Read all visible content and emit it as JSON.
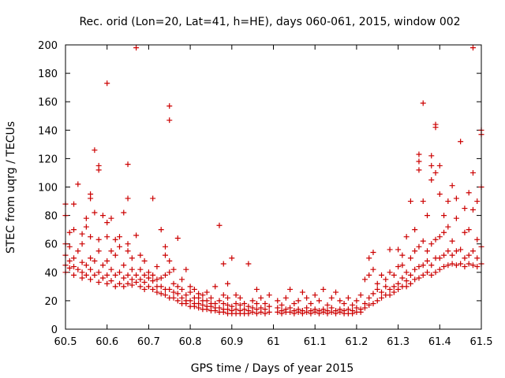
{
  "chart_data": {
    "type": "scatter",
    "title": "Rec. orid (Lon=20, Lat=41, h=HE), days 060-061, 2015, window 002",
    "xlabel": "GPS time / Days of year 2015",
    "ylabel": "STEC from uqrg / TECUs",
    "xlim": [
      60.5,
      61.5
    ],
    "ylim": [
      0,
      200
    ],
    "xticks": [
      60.5,
      60.6,
      60.7,
      60.8,
      60.9,
      61,
      61.1,
      61.2,
      61.3,
      61.4,
      61.5
    ],
    "xtick_labels": [
      "60.5",
      "60.6",
      "60.7",
      "60.8",
      "60.9",
      "61",
      "61.1",
      "61.2",
      "61.3",
      "61.4",
      "61.5"
    ],
    "yticks": [
      0,
      20,
      40,
      60,
      80,
      100,
      120,
      140,
      160,
      180,
      200
    ],
    "ytick_labels": [
      "0",
      "20",
      "40",
      "60",
      "80",
      "100",
      "120",
      "140",
      "160",
      "180",
      "200"
    ],
    "marker": "+",
    "color": "#cc0000",
    "points": [
      [
        60.5,
        40
      ],
      [
        60.5,
        45
      ],
      [
        60.5,
        52
      ],
      [
        60.5,
        60
      ],
      [
        60.5,
        80
      ],
      [
        60.5,
        88
      ],
      [
        60.51,
        43
      ],
      [
        60.51,
        48
      ],
      [
        60.51,
        58
      ],
      [
        60.51,
        68
      ],
      [
        60.52,
        38
      ],
      [
        60.52,
        44
      ],
      [
        60.52,
        50
      ],
      [
        60.52,
        70
      ],
      [
        60.52,
        88
      ],
      [
        60.53,
        42
      ],
      [
        60.53,
        55
      ],
      [
        60.53,
        102
      ],
      [
        60.54,
        36
      ],
      [
        60.54,
        40
      ],
      [
        60.54,
        47
      ],
      [
        60.54,
        60
      ],
      [
        60.54,
        67
      ],
      [
        60.55,
        38
      ],
      [
        60.55,
        45
      ],
      [
        60.55,
        72
      ],
      [
        60.55,
        78
      ],
      [
        60.56,
        35
      ],
      [
        60.56,
        42
      ],
      [
        60.56,
        50
      ],
      [
        60.56,
        65
      ],
      [
        60.56,
        92
      ],
      [
        60.56,
        95
      ],
      [
        60.57,
        38
      ],
      [
        60.57,
        48
      ],
      [
        60.57,
        82
      ],
      [
        60.57,
        126
      ],
      [
        60.58,
        33
      ],
      [
        60.58,
        40
      ],
      [
        60.58,
        55
      ],
      [
        60.58,
        63
      ],
      [
        60.58,
        112
      ],
      [
        60.58,
        115
      ],
      [
        60.59,
        36
      ],
      [
        60.59,
        45
      ],
      [
        60.59,
        80
      ],
      [
        60.6,
        32
      ],
      [
        60.6,
        38
      ],
      [
        60.6,
        48
      ],
      [
        60.6,
        65
      ],
      [
        60.6,
        75
      ],
      [
        60.6,
        173
      ],
      [
        60.61,
        34
      ],
      [
        60.61,
        42
      ],
      [
        60.61,
        55
      ],
      [
        60.61,
        78
      ],
      [
        60.62,
        30
      ],
      [
        60.62,
        38
      ],
      [
        60.62,
        52
      ],
      [
        60.62,
        63
      ],
      [
        60.63,
        32
      ],
      [
        60.63,
        40
      ],
      [
        60.63,
        58
      ],
      [
        60.63,
        65
      ],
      [
        60.64,
        30
      ],
      [
        60.64,
        36
      ],
      [
        60.64,
        45
      ],
      [
        60.64,
        82
      ],
      [
        60.65,
        32
      ],
      [
        60.65,
        38
      ],
      [
        60.65,
        55
      ],
      [
        60.65,
        60
      ],
      [
        60.65,
        92
      ],
      [
        60.65,
        116
      ],
      [
        60.66,
        31
      ],
      [
        60.66,
        35
      ],
      [
        60.66,
        42
      ],
      [
        60.66,
        50
      ],
      [
        60.67,
        33
      ],
      [
        60.67,
        38
      ],
      [
        60.67,
        66
      ],
      [
        60.67,
        198
      ],
      [
        60.68,
        30
      ],
      [
        60.68,
        35
      ],
      [
        60.68,
        42
      ],
      [
        60.68,
        52
      ],
      [
        60.69,
        28
      ],
      [
        60.69,
        33
      ],
      [
        60.69,
        38
      ],
      [
        60.69,
        48
      ],
      [
        60.7,
        30
      ],
      [
        60.7,
        36
      ],
      [
        60.7,
        40
      ],
      [
        60.71,
        28
      ],
      [
        60.71,
        34
      ],
      [
        60.71,
        38
      ],
      [
        60.71,
        92
      ],
      [
        60.72,
        26
      ],
      [
        60.72,
        30
      ],
      [
        60.72,
        35
      ],
      [
        60.72,
        44
      ],
      [
        60.73,
        25
      ],
      [
        60.73,
        30
      ],
      [
        60.73,
        36
      ],
      [
        60.73,
        70
      ],
      [
        60.74,
        24
      ],
      [
        60.74,
        28
      ],
      [
        60.74,
        38
      ],
      [
        60.74,
        52
      ],
      [
        60.74,
        58
      ],
      [
        60.75,
        22
      ],
      [
        60.75,
        28
      ],
      [
        60.75,
        40
      ],
      [
        60.75,
        48
      ],
      [
        60.75,
        147
      ],
      [
        60.75,
        157
      ],
      [
        60.76,
        22
      ],
      [
        60.76,
        26
      ],
      [
        60.76,
        32
      ],
      [
        60.76,
        42
      ],
      [
        60.77,
        20
      ],
      [
        60.77,
        25
      ],
      [
        60.77,
        30
      ],
      [
        60.77,
        64
      ],
      [
        60.78,
        18
      ],
      [
        60.78,
        22
      ],
      [
        60.78,
        28
      ],
      [
        60.78,
        35
      ],
      [
        60.79,
        18
      ],
      [
        60.79,
        20
      ],
      [
        60.79,
        24
      ],
      [
        60.79,
        42
      ],
      [
        60.8,
        16
      ],
      [
        60.8,
        20
      ],
      [
        60.8,
        26
      ],
      [
        60.8,
        30
      ],
      [
        60.81,
        16
      ],
      [
        60.81,
        18
      ],
      [
        60.81,
        22
      ],
      [
        60.81,
        28
      ],
      [
        60.82,
        15
      ],
      [
        60.82,
        18
      ],
      [
        60.82,
        22
      ],
      [
        60.82,
        25
      ],
      [
        60.83,
        14
      ],
      [
        60.83,
        17
      ],
      [
        60.83,
        20
      ],
      [
        60.83,
        24
      ],
      [
        60.84,
        14
      ],
      [
        60.84,
        16
      ],
      [
        60.84,
        20
      ],
      [
        60.84,
        26
      ],
      [
        60.85,
        13
      ],
      [
        60.85,
        16
      ],
      [
        60.85,
        18
      ],
      [
        60.85,
        22
      ],
      [
        60.86,
        13
      ],
      [
        60.86,
        15
      ],
      [
        60.86,
        18
      ],
      [
        60.86,
        30
      ],
      [
        60.87,
        12
      ],
      [
        60.87,
        15
      ],
      [
        60.87,
        20
      ],
      [
        60.87,
        73
      ],
      [
        60.88,
        12
      ],
      [
        60.88,
        14
      ],
      [
        60.88,
        18
      ],
      [
        60.88,
        24
      ],
      [
        60.88,
        46
      ],
      [
        60.89,
        11
      ],
      [
        60.89,
        14
      ],
      [
        60.89,
        17
      ],
      [
        60.89,
        22
      ],
      [
        60.89,
        32
      ],
      [
        60.9,
        11
      ],
      [
        60.9,
        13
      ],
      [
        60.9,
        16
      ],
      [
        60.9,
        50
      ],
      [
        60.91,
        11
      ],
      [
        60.91,
        14
      ],
      [
        60.91,
        18
      ],
      [
        60.91,
        24
      ],
      [
        60.92,
        11
      ],
      [
        60.92,
        13
      ],
      [
        60.92,
        17
      ],
      [
        60.92,
        22
      ],
      [
        60.93,
        11
      ],
      [
        60.93,
        14
      ],
      [
        60.93,
        18
      ],
      [
        60.94,
        11
      ],
      [
        60.94,
        13
      ],
      [
        60.94,
        16
      ],
      [
        60.94,
        46
      ],
      [
        60.95,
        12
      ],
      [
        60.95,
        15
      ],
      [
        60.95,
        20
      ],
      [
        60.96,
        11
      ],
      [
        60.96,
        14
      ],
      [
        60.96,
        18
      ],
      [
        60.96,
        28
      ],
      [
        60.97,
        12
      ],
      [
        60.97,
        15
      ],
      [
        60.97,
        22
      ],
      [
        60.98,
        11
      ],
      [
        60.98,
        14
      ],
      [
        60.98,
        18
      ],
      [
        60.99,
        12
      ],
      [
        60.99,
        16
      ],
      [
        60.99,
        24
      ],
      [
        61.01,
        12
      ],
      [
        61.01,
        15
      ],
      [
        61.01,
        20
      ],
      [
        61.02,
        11
      ],
      [
        61.02,
        13
      ],
      [
        61.02,
        17
      ],
      [
        61.03,
        12
      ],
      [
        61.03,
        14
      ],
      [
        61.03,
        22
      ],
      [
        61.04,
        12
      ],
      [
        61.04,
        15
      ],
      [
        61.04,
        28
      ],
      [
        61.05,
        11
      ],
      [
        61.05,
        13
      ],
      [
        61.05,
        18
      ],
      [
        61.06,
        12
      ],
      [
        61.06,
        14
      ],
      [
        61.06,
        20
      ],
      [
        61.07,
        11
      ],
      [
        61.07,
        13
      ],
      [
        61.07,
        26
      ],
      [
        61.08,
        12
      ],
      [
        61.08,
        15
      ],
      [
        61.08,
        22
      ],
      [
        61.09,
        11
      ],
      [
        61.09,
        13
      ],
      [
        61.09,
        18
      ],
      [
        61.1,
        12
      ],
      [
        61.1,
        14
      ],
      [
        61.1,
        24
      ],
      [
        61.11,
        11
      ],
      [
        61.11,
        13
      ],
      [
        61.11,
        20
      ],
      [
        61.12,
        12
      ],
      [
        61.12,
        14
      ],
      [
        61.12,
        28
      ],
      [
        61.13,
        11
      ],
      [
        61.13,
        13
      ],
      [
        61.13,
        17
      ],
      [
        61.14,
        12
      ],
      [
        61.14,
        15
      ],
      [
        61.14,
        22
      ],
      [
        61.15,
        11
      ],
      [
        61.15,
        13
      ],
      [
        61.15,
        26
      ],
      [
        61.16,
        12
      ],
      [
        61.16,
        14
      ],
      [
        61.16,
        20
      ],
      [
        61.17,
        11
      ],
      [
        61.17,
        13
      ],
      [
        61.17,
        18
      ],
      [
        61.18,
        11
      ],
      [
        61.18,
        14
      ],
      [
        61.18,
        22
      ],
      [
        61.19,
        11
      ],
      [
        61.19,
        13
      ],
      [
        61.19,
        17
      ],
      [
        61.2,
        12
      ],
      [
        61.2,
        15
      ],
      [
        61.2,
        20
      ],
      [
        61.21,
        12
      ],
      [
        61.21,
        14
      ],
      [
        61.21,
        24
      ],
      [
        61.22,
        15
      ],
      [
        61.22,
        18
      ],
      [
        61.22,
        35
      ],
      [
        61.23,
        17
      ],
      [
        61.23,
        22
      ],
      [
        61.23,
        38
      ],
      [
        61.23,
        50
      ],
      [
        61.24,
        18
      ],
      [
        61.24,
        25
      ],
      [
        61.24,
        42
      ],
      [
        61.24,
        54
      ],
      [
        61.25,
        20
      ],
      [
        61.25,
        28
      ],
      [
        61.25,
        32
      ],
      [
        61.26,
        22
      ],
      [
        61.26,
        26
      ],
      [
        61.26,
        38
      ],
      [
        61.27,
        24
      ],
      [
        61.27,
        30
      ],
      [
        61.27,
        35
      ],
      [
        61.28,
        24
      ],
      [
        61.28,
        28
      ],
      [
        61.28,
        40
      ],
      [
        61.28,
        56
      ],
      [
        61.29,
        26
      ],
      [
        61.29,
        30
      ],
      [
        61.29,
        38
      ],
      [
        61.3,
        28
      ],
      [
        61.3,
        32
      ],
      [
        61.3,
        44
      ],
      [
        61.3,
        56
      ],
      [
        61.31,
        30
      ],
      [
        61.31,
        36
      ],
      [
        61.31,
        45
      ],
      [
        61.31,
        52
      ],
      [
        61.32,
        30
      ],
      [
        61.32,
        34
      ],
      [
        61.32,
        40
      ],
      [
        61.32,
        65
      ],
      [
        61.33,
        32
      ],
      [
        61.33,
        38
      ],
      [
        61.33,
        50
      ],
      [
        61.33,
        90
      ],
      [
        61.34,
        35
      ],
      [
        61.34,
        42
      ],
      [
        61.34,
        55
      ],
      [
        61.34,
        70
      ],
      [
        61.35,
        36
      ],
      [
        61.35,
        44
      ],
      [
        61.35,
        58
      ],
      [
        61.35,
        112
      ],
      [
        61.35,
        118
      ],
      [
        61.35,
        123
      ],
      [
        61.36,
        38
      ],
      [
        61.36,
        45
      ],
      [
        61.36,
        62
      ],
      [
        61.36,
        90
      ],
      [
        61.36,
        159
      ],
      [
        61.37,
        40
      ],
      [
        61.37,
        48
      ],
      [
        61.37,
        55
      ],
      [
        61.37,
        80
      ],
      [
        61.38,
        38
      ],
      [
        61.38,
        45
      ],
      [
        61.38,
        60
      ],
      [
        61.38,
        105
      ],
      [
        61.38,
        115
      ],
      [
        61.38,
        122
      ],
      [
        61.39,
        40
      ],
      [
        61.39,
        50
      ],
      [
        61.39,
        63
      ],
      [
        61.39,
        110
      ],
      [
        61.39,
        142
      ],
      [
        61.39,
        144
      ],
      [
        61.4,
        42
      ],
      [
        61.4,
        50
      ],
      [
        61.4,
        65
      ],
      [
        61.4,
        95
      ],
      [
        61.4,
        115
      ],
      [
        61.41,
        44
      ],
      [
        61.41,
        52
      ],
      [
        61.41,
        68
      ],
      [
        61.41,
        80
      ],
      [
        61.42,
        45
      ],
      [
        61.42,
        55
      ],
      [
        61.42,
        72
      ],
      [
        61.42,
        90
      ],
      [
        61.43,
        46
      ],
      [
        61.43,
        52
      ],
      [
        61.43,
        62
      ],
      [
        61.43,
        101
      ],
      [
        61.44,
        45
      ],
      [
        61.44,
        55
      ],
      [
        61.44,
        78
      ],
      [
        61.44,
        92
      ],
      [
        61.45,
        46
      ],
      [
        61.45,
        56
      ],
      [
        61.45,
        132
      ],
      [
        61.46,
        44
      ],
      [
        61.46,
        50
      ],
      [
        61.46,
        68
      ],
      [
        61.46,
        85
      ],
      [
        61.47,
        46
      ],
      [
        61.47,
        52
      ],
      [
        61.47,
        70
      ],
      [
        61.47,
        96
      ],
      [
        61.48,
        45
      ],
      [
        61.48,
        55
      ],
      [
        61.48,
        84
      ],
      [
        61.48,
        110
      ],
      [
        61.48,
        198
      ],
      [
        61.49,
        44
      ],
      [
        61.49,
        50
      ],
      [
        61.49,
        63
      ],
      [
        61.49,
        90
      ],
      [
        61.5,
        46
      ],
      [
        61.5,
        58
      ],
      [
        61.5,
        100
      ],
      [
        61.5,
        137
      ],
      [
        61.5,
        140
      ]
    ]
  }
}
